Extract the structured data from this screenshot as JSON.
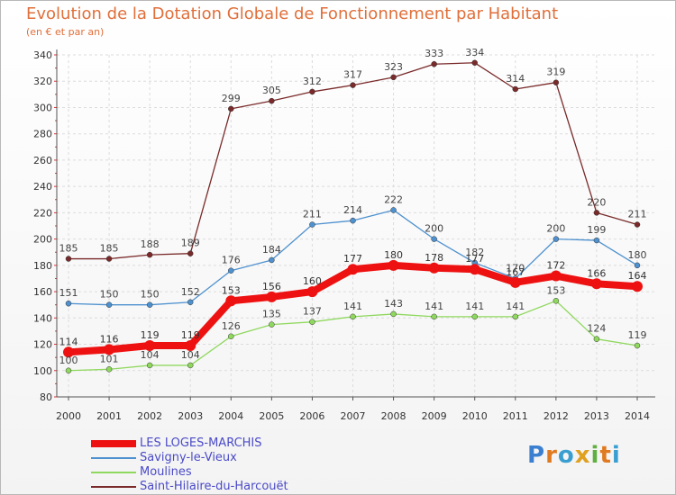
{
  "chart_data": {
    "type": "line",
    "title": "Evolution de la Dotation Globale de Fonctionnement par Habitant",
    "subtitle": "(en € et par an)",
    "xlabel": "",
    "ylabel": "",
    "ylim": [
      80,
      340
    ],
    "yticks": [
      80,
      100,
      120,
      140,
      160,
      180,
      200,
      220,
      240,
      260,
      280,
      300,
      320,
      340
    ],
    "grid": true,
    "legend_placement": "bottom-left",
    "x": [
      "2000",
      "2001",
      "2002",
      "2003",
      "2004",
      "2005",
      "2006",
      "2007",
      "2008",
      "2009",
      "2010",
      "2011",
      "2012",
      "2013",
      "2014"
    ],
    "series": [
      {
        "name": "Saint-Hilaire-du-Harcouët",
        "color": "#7a2a2a",
        "values": [
          185,
          185,
          188,
          189,
          299,
          305,
          312,
          317,
          323,
          333,
          334,
          314,
          319,
          220,
          211
        ]
      },
      {
        "name": "Savigny-le-Vieux",
        "color": "#4e91cf",
        "values": [
          151,
          150,
          150,
          152,
          176,
          184,
          211,
          214,
          222,
          200,
          182,
          170,
          200,
          199,
          180
        ]
      },
      {
        "name": "Moulines",
        "color": "#8fd85e",
        "values": [
          100,
          101,
          104,
          104,
          126,
          135,
          137,
          141,
          143,
          141,
          141,
          141,
          153,
          124,
          119
        ]
      },
      {
        "name": "LES LOGES-MARCHIS",
        "color": "#ee1111",
        "values": [
          114,
          116,
          119,
          119,
          153,
          156,
          160,
          177,
          180,
          178,
          177,
          167,
          172,
          166,
          164
        ]
      }
    ],
    "legend_order": [
      3,
      1,
      2,
      0
    ]
  },
  "logo": {
    "letters": [
      "P",
      "r",
      "o",
      "x",
      "i",
      "t",
      "i"
    ],
    "colors": [
      "#3a7fd0",
      "#e07a20",
      "#3a9fd0",
      "#e0a020",
      "#60b040",
      "#e07a20",
      "#3a9fd0"
    ]
  }
}
